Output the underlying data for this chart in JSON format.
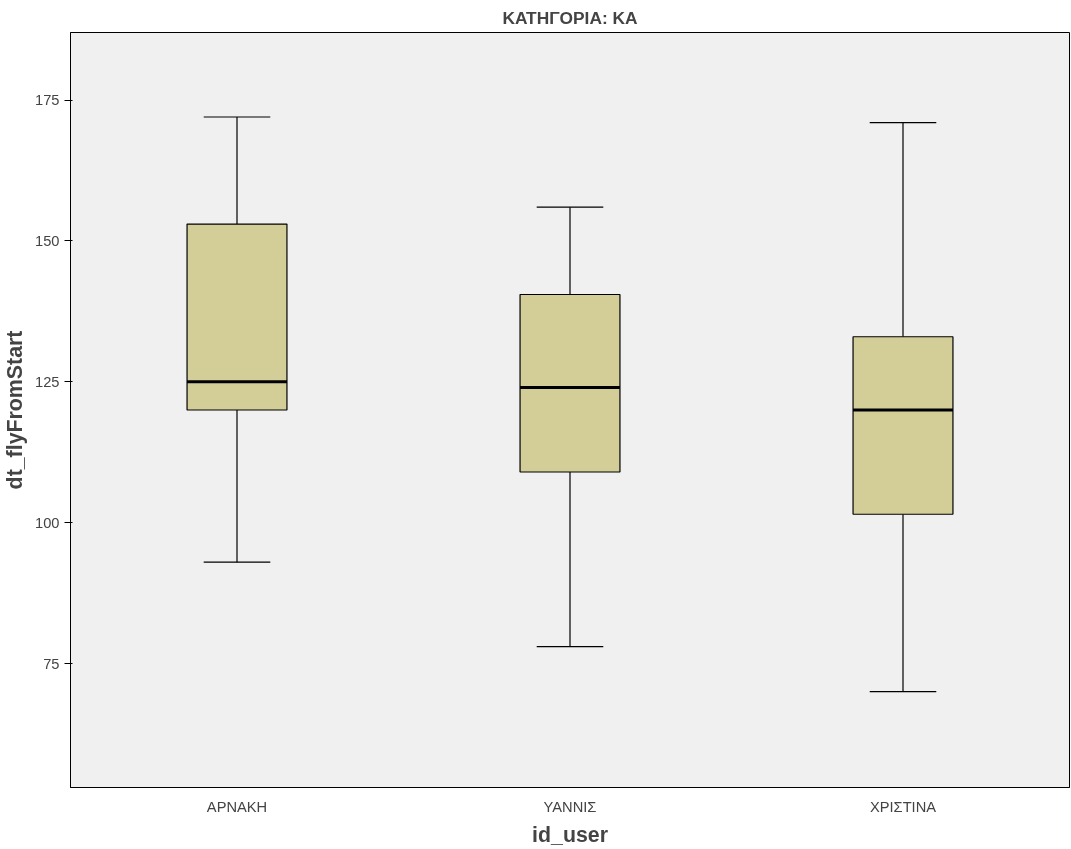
{
  "chart_data": {
    "type": "box",
    "title": "ΚΑΤΗΓΟΡΙΑ: ΚΑ",
    "xlabel": "id_user",
    "ylabel": "dt_flyFromStart",
    "categories": [
      "ΑΡΝΑΚΗ",
      "ΥΑΝΝΙΣ",
      "ΧΡΙΣΤΙΝΑ"
    ],
    "series": [
      {
        "color": "#d3ce97",
        "boxes": [
          {
            "low": 93,
            "q1": 120,
            "median": 125,
            "q3": 153,
            "high": 172
          },
          {
            "low": 78,
            "q1": 109,
            "median": 124,
            "q3": 140.5,
            "high": 156
          },
          {
            "low": 70,
            "q1": 101.5,
            "median": 120,
            "q3": 133,
            "high": 171
          }
        ]
      }
    ],
    "ylim": [
      53,
      187
    ],
    "yticks": [
      75,
      100,
      125,
      150,
      175
    ],
    "grid": false
  }
}
